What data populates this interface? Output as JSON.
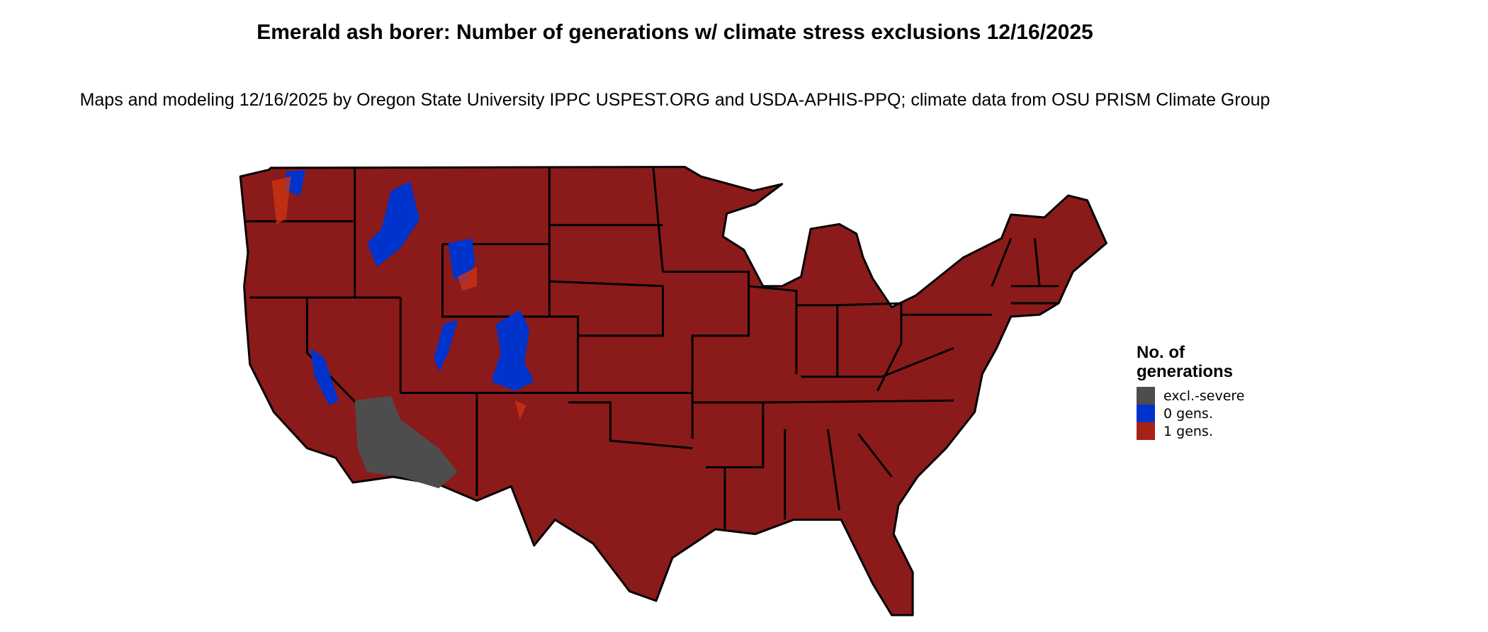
{
  "title": "Emerald ash borer: Number of generations w/ climate stress exclusions 12/16/2025",
  "subtitle": "Maps and modeling 12/16/2025 by Oregon State University IPPC USPEST.ORG and USDA-APHIS-PPQ; climate data from OSU PRISM Climate Group",
  "legend": {
    "title": "No. of\ngenerations",
    "items": [
      {
        "label": "excl.-severe",
        "color": "#4d4d4d"
      },
      {
        "label": "0 gens.",
        "color": "#0033cc"
      },
      {
        "label": "1 gens.",
        "color": "#a82218"
      }
    ]
  },
  "colors": {
    "land": "#8b1a1a",
    "border": "#000000"
  }
}
